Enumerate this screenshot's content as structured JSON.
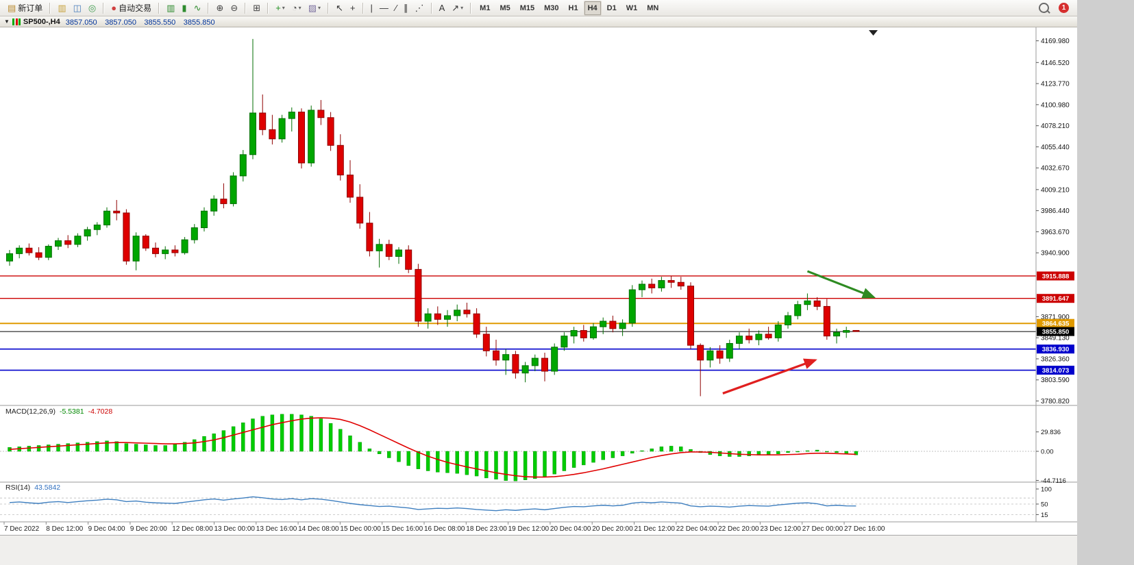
{
  "toolbar": {
    "groups": [
      {
        "items": [
          {
            "name": "new-order-button",
            "glyph": "▤",
            "color": "#b98a2e",
            "label": "新订单",
            "interactable": true
          }
        ]
      },
      {
        "items": [
          {
            "name": "charts-icon",
            "glyph": "▥",
            "color": "#c7a23c"
          },
          {
            "name": "market-watch-icon",
            "glyph": "◫",
            "color": "#4a7ebb"
          },
          {
            "name": "navigator-icon",
            "glyph": "◎",
            "color": "#3f9c4e"
          }
        ]
      },
      {
        "items": [
          {
            "name": "auto-trading-button",
            "glyph": "●",
            "color": "#d04040",
            "label": "自动交易"
          }
        ]
      },
      {
        "items": [
          {
            "name": "bar-chart-button",
            "glyph": "▥",
            "color": "#2e8b2e"
          },
          {
            "name": "candlestick-chart-button",
            "glyph": "▮",
            "color": "#2e8b2e"
          },
          {
            "name": "line-chart-button",
            "glyph": "∿",
            "color": "#2e8b2e"
          }
        ]
      },
      {
        "items": [
          {
            "name": "zoom-in-button",
            "glyph": "⊕",
            "color": "#444"
          },
          {
            "name": "zoom-out-button",
            "glyph": "⊖",
            "color": "#444"
          }
        ]
      },
      {
        "items": [
          {
            "name": "tile-windows-button",
            "glyph": "⊞",
            "color": "#444"
          }
        ]
      },
      {
        "items": [
          {
            "name": "indicators-button",
            "glyph": "+",
            "color": "#1f8f1f",
            "dropdown": true
          },
          {
            "name": "periods-button",
            "glyph": "◔",
            "color": "#555",
            "dropdown": true
          },
          {
            "name": "templates-button",
            "glyph": "▨",
            "color": "#7a6f9e",
            "dropdown": true
          }
        ]
      },
      {
        "items": [
          {
            "name": "cursor-button",
            "glyph": "↖",
            "color": "#333"
          },
          {
            "name": "crosshair-button",
            "glyph": "+",
            "color": "#333"
          }
        ]
      },
      {
        "items": [
          {
            "name": "vertical-line-button",
            "glyph": "|",
            "color": "#333"
          },
          {
            "name": "horizontal-line-button",
            "glyph": "—",
            "color": "#333"
          },
          {
            "name": "trendline-button",
            "glyph": "∕",
            "color": "#333"
          },
          {
            "name": "channel-button",
            "glyph": "∥",
            "color": "#333"
          },
          {
            "name": "fibonacci-button",
            "glyph": "⋰",
            "color": "#333"
          }
        ]
      },
      {
        "items": [
          {
            "name": "text-button",
            "glyph": "A",
            "color": "#333"
          },
          {
            "name": "arrows-button",
            "glyph": "↗",
            "color": "#333",
            "dropdown": true
          }
        ]
      }
    ],
    "timeframes": [
      "M1",
      "M5",
      "M15",
      "M30",
      "H1",
      "H4",
      "D1",
      "W1",
      "MN"
    ],
    "active_timeframe": "H4",
    "notification_count": "1"
  },
  "chart_header": {
    "title": "SP500-,H4",
    "open": "3857.050",
    "high": "3857.050",
    "low": "3855.550",
    "close": "3855.850"
  },
  "price_axis": {
    "ticks": [
      {
        "label": "4169.980",
        "value": 4169.98
      },
      {
        "label": "4146.520",
        "value": 4146.52
      },
      {
        "label": "4123.770",
        "value": 4123.77
      },
      {
        "label": "4100.980",
        "value": 4100.98
      },
      {
        "label": "4078.210",
        "value": 4078.21
      },
      {
        "label": "4055.440",
        "value": 4055.44
      },
      {
        "label": "4032.670",
        "value": 4032.67
      },
      {
        "label": "4009.210",
        "value": 4009.21
      },
      {
        "label": "3986.440",
        "value": 3986.44
      },
      {
        "label": "3963.670",
        "value": 3963.67
      },
      {
        "label": "3940.900",
        "value": 3940.9
      },
      {
        "label": "3871.900",
        "value": 3871.9
      },
      {
        "label": "3849.130",
        "value": 3849.13
      },
      {
        "label": "3826.360",
        "value": 3826.36
      },
      {
        "label": "3803.590",
        "value": 3803.59
      },
      {
        "label": "3780.820",
        "value": 3780.82
      }
    ]
  },
  "price_lines": [
    {
      "label": "3915.888",
      "value": 3915.888,
      "color": "#cc0000",
      "width": 1.4
    },
    {
      "label": "3891.647",
      "value": 3891.647,
      "color": "#cc0000",
      "width": 1.4
    },
    {
      "label": "3864.635",
      "value": 3864.635,
      "color": "#e09a00",
      "width": 2
    },
    {
      "label": "3855.850",
      "value": 3855.85,
      "color": "#000000",
      "width": 1
    },
    {
      "label": "3836.930",
      "value": 3836.93,
      "color": "#0000cc",
      "width": 1.6
    },
    {
      "label": "3814.073",
      "value": 3814.073,
      "color": "#0000cc",
      "width": 1.6
    }
  ],
  "time_axis": {
    "labels": [
      "7 Dec 2022",
      "8 Dec 12:00",
      "9 Dec 04:00",
      "9 Dec 20:00",
      "12 Dec 08:00",
      "13 Dec 00:00",
      "13 Dec 16:00",
      "14 Dec 08:00",
      "15 Dec 00:00",
      "15 Dec 16:00",
      "16 Dec 08:00",
      "18 Dec 23:00",
      "19 Dec 12:00",
      "20 Dec 04:00",
      "20 Dec 20:00",
      "21 Dec 12:00",
      "22 Dec 04:00",
      "22 Dec 20:00",
      "23 Dec 12:00",
      "27 Dec 00:00",
      "27 Dec 16:00"
    ]
  },
  "chart_data": {
    "type": "candlestick",
    "symbol": "SP500-",
    "timeframe": "H4",
    "ylim": [
      3776,
      4183
    ],
    "up_color": "#00a600",
    "up_border": "#006e00",
    "down_color": "#de0000",
    "down_border": "#8f0000",
    "candles": [
      [
        3932,
        3944,
        3927,
        3940
      ],
      [
        3940,
        3949,
        3935,
        3946
      ],
      [
        3946,
        3951,
        3938,
        3941
      ],
      [
        3941,
        3947,
        3933,
        3936
      ],
      [
        3936,
        3950,
        3933,
        3948
      ],
      [
        3948,
        3957,
        3944,
        3954
      ],
      [
        3954,
        3960,
        3946,
        3950
      ],
      [
        3950,
        3962,
        3947,
        3959
      ],
      [
        3959,
        3969,
        3954,
        3966
      ],
      [
        3966,
        3974,
        3960,
        3971
      ],
      [
        3971,
        3990,
        3968,
        3986
      ],
      [
        3986,
        3998,
        3976,
        3984
      ],
      [
        3984,
        3988,
        3928,
        3932
      ],
      [
        3932,
        3963,
        3922,
        3959
      ],
      [
        3959,
        3961,
        3943,
        3946
      ],
      [
        3946,
        3952,
        3936,
        3940
      ],
      [
        3940,
        3948,
        3934,
        3944
      ],
      [
        3944,
        3949,
        3937,
        3941
      ],
      [
        3941,
        3958,
        3939,
        3955
      ],
      [
        3955,
        3972,
        3951,
        3968
      ],
      [
        3968,
        3990,
        3964,
        3986
      ],
      [
        3986,
        4003,
        3981,
        3999
      ],
      [
        3999,
        4016,
        3989,
        3994
      ],
      [
        3994,
        4028,
        3991,
        4024
      ],
      [
        4024,
        4052,
        4018,
        4047
      ],
      [
        4047,
        4172,
        4042,
        4092
      ],
      [
        4092,
        4112,
        4068,
        4074
      ],
      [
        4074,
        4090,
        4058,
        4064
      ],
      [
        4064,
        4090,
        4060,
        4086
      ],
      [
        4086,
        4098,
        4072,
        4093
      ],
      [
        4093,
        4097,
        4032,
        4038
      ],
      [
        4038,
        4100,
        4034,
        4095
      ],
      [
        4095,
        4106,
        4079,
        4087
      ],
      [
        4087,
        4093,
        4051,
        4057
      ],
      [
        4057,
        4069,
        4019,
        4025
      ],
      [
        4025,
        4041,
        3995,
        4001
      ],
      [
        4001,
        4015,
        3967,
        3973
      ],
      [
        3973,
        3985,
        3937,
        3943
      ],
      [
        3943,
        3956,
        3925,
        3950
      ],
      [
        3950,
        3955,
        3933,
        3937
      ],
      [
        3937,
        3947,
        3929,
        3944
      ],
      [
        3944,
        3949,
        3919,
        3923
      ],
      [
        3923,
        3929,
        3861,
        3867
      ],
      [
        3867,
        3881,
        3859,
        3875
      ],
      [
        3875,
        3883,
        3863,
        3869
      ],
      [
        3869,
        3879,
        3861,
        3873
      ],
      [
        3873,
        3885,
        3867,
        3879
      ],
      [
        3879,
        3887,
        3871,
        3875
      ],
      [
        3875,
        3881,
        3849,
        3853
      ],
      [
        3853,
        3861,
        3829,
        3835
      ],
      [
        3835,
        3847,
        3819,
        3825
      ],
      [
        3825,
        3837,
        3809,
        3831
      ],
      [
        3831,
        3835,
        3805,
        3811
      ],
      [
        3811,
        3823,
        3801,
        3819
      ],
      [
        3819,
        3831,
        3813,
        3827
      ],
      [
        3827,
        3833,
        3802,
        3813
      ],
      [
        3813,
        3843,
        3809,
        3839
      ],
      [
        3839,
        3855,
        3835,
        3851
      ],
      [
        3851,
        3861,
        3843,
        3857
      ],
      [
        3857,
        3863,
        3845,
        3849
      ],
      [
        3849,
        3865,
        3847,
        3861
      ],
      [
        3861,
        3871,
        3853,
        3867
      ],
      [
        3867,
        3873,
        3855,
        3859
      ],
      [
        3859,
        3869,
        3851,
        3865
      ],
      [
        3865,
        3906,
        3861,
        3901
      ],
      [
        3901,
        3911,
        3893,
        3907
      ],
      [
        3907,
        3913,
        3897,
        3903
      ],
      [
        3903,
        3915,
        3899,
        3911
      ],
      [
        3911,
        3916,
        3903,
        3909
      ],
      [
        3909,
        3915,
        3901,
        3905
      ],
      [
        3905,
        3909,
        3837,
        3841
      ],
      [
        3841,
        3843,
        3786,
        3825
      ],
      [
        3825,
        3839,
        3817,
        3835
      ],
      [
        3835,
        3841,
        3821,
        3827
      ],
      [
        3827,
        3847,
        3823,
        3843
      ],
      [
        3843,
        3855,
        3837,
        3851
      ],
      [
        3851,
        3859,
        3843,
        3847
      ],
      [
        3847,
        3857,
        3841,
        3853
      ],
      [
        3853,
        3861,
        3847,
        3849
      ],
      [
        3849,
        3867,
        3845,
        3863
      ],
      [
        3863,
        3877,
        3859,
        3873
      ],
      [
        3873,
        3889,
        3869,
        3885
      ],
      [
        3885,
        3897,
        3879,
        3889
      ],
      [
        3889,
        3893,
        3879,
        3883
      ],
      [
        3883,
        3891,
        3847,
        3851
      ],
      [
        3851,
        3859,
        3843,
        3855
      ],
      [
        3855,
        3861,
        3849,
        3857
      ],
      [
        3857.05,
        3857.05,
        3855.55,
        3855.85
      ]
    ]
  },
  "macd": {
    "label": "MACD(12,26,9)",
    "value": "-5.5381",
    "signal_value": "-4.7028",
    "histogram_color": "#00cc00",
    "signal_color": "#e00000",
    "ticks": [
      {
        "label": "29.836",
        "value": 29.836
      },
      {
        "label": "0.00",
        "value": 0
      },
      {
        "label": "-44.7116",
        "value": -44.7116
      }
    ],
    "histogram": [
      6,
      7,
      8,
      9,
      10,
      11,
      12,
      13,
      14,
      15,
      16,
      15,
      12,
      11,
      10,
      9,
      9,
      11,
      14,
      18,
      23,
      27,
      32,
      38,
      44,
      50,
      54,
      56,
      57,
      57,
      56,
      54,
      50,
      43,
      34,
      24,
      14,
      4,
      -4,
      -10,
      -16,
      -22,
      -27,
      -30,
      -32,
      -33,
      -34,
      -36,
      -38,
      -41,
      -43,
      -45,
      -45.5,
      -44,
      -42,
      -39,
      -35,
      -30,
      -25,
      -21,
      -17,
      -13,
      -10,
      -7,
      -3,
      1,
      4,
      7,
      8,
      7,
      3,
      -2,
      -5,
      -7,
      -8,
      -8,
      -7,
      -6,
      -5,
      -4,
      -2,
      -1,
      1,
      2,
      0,
      -2,
      -4,
      -5.54
    ],
    "signal": [
      3,
      4,
      5,
      6,
      7,
      8,
      9,
      10,
      11,
      12,
      13,
      13.5,
      13.5,
      13,
      12.5,
      12,
      11.5,
      11.5,
      12,
      13,
      15,
      17.5,
      21,
      25,
      29,
      33,
      37,
      41,
      44,
      47,
      49.5,
      51,
      51.5,
      51,
      49,
      45,
      39.5,
      33,
      26,
      19,
      12,
      5,
      -1.5,
      -7.5,
      -12.5,
      -17,
      -20.5,
      -24,
      -27,
      -30,
      -33,
      -35.5,
      -37.5,
      -39,
      -39.5,
      -39.5,
      -39,
      -37.5,
      -35.5,
      -33,
      -30,
      -27,
      -23.5,
      -20,
      -16.5,
      -13,
      -9.5,
      -6.5,
      -4,
      -2,
      -1,
      -1,
      -1.5,
      -2.5,
      -3.5,
      -4.5,
      -5,
      -5.5,
      -5.5,
      -5.5,
      -5,
      -4.5,
      -3.5,
      -3,
      -3,
      -3.5,
      -4,
      -4.7
    ]
  },
  "rsi": {
    "label": "RSI(14)",
    "value": "43.5842",
    "line_color": "#3d7ebf",
    "axis_labels": [
      {
        "label": "100",
        "value": 100
      },
      {
        "label": "50",
        "value": 50
      },
      {
        "label": "15",
        "value": 15
      }
    ],
    "levels": [
      70,
      50,
      15
    ],
    "series": [
      55,
      57,
      54,
      52,
      56,
      58,
      55,
      58,
      61,
      63,
      66,
      64,
      58,
      60,
      56,
      54,
      53,
      52,
      56,
      60,
      64,
      67,
      63,
      67,
      70,
      74,
      71,
      67,
      65,
      68,
      64,
      68,
      66,
      62,
      57,
      52,
      48,
      45,
      42,
      43,
      40,
      37,
      32,
      34,
      36,
      35,
      37,
      35,
      32,
      30,
      28,
      31,
      29,
      32,
      34,
      31,
      35,
      39,
      42,
      41,
      44,
      46,
      44,
      46,
      53,
      56,
      54,
      57,
      55,
      53,
      44,
      41,
      43,
      42,
      40,
      43,
      45,
      44,
      43,
      47,
      50,
      53,
      54,
      51,
      44,
      46,
      44,
      43.58
    ]
  },
  "annotations": {
    "arrows": [
      {
        "i1": 82.0,
        "p1": 3921,
        "i2": 88.8,
        "p2": 3893,
        "color": "#2e8b22"
      },
      {
        "i1": 73.3,
        "p1": 3789,
        "i2": 82.8,
        "p2": 3825,
        "color": "#e01f1f"
      }
    ]
  }
}
